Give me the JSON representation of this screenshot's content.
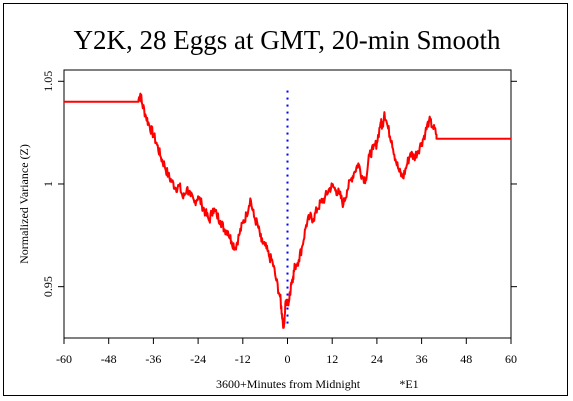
{
  "chart_data": {
    "type": "line",
    "title": "Y2K, 28 Eggs at GMT, 20-min Smooth",
    "xlabel": "3600+Minutes from Midnight",
    "xlabel_note": "*E1",
    "ylabel": "Normalized Variance (Z)",
    "xlim": [
      -60,
      60
    ],
    "ylim": [
      0.925,
      1.0555
    ],
    "x_ticks": [
      -60,
      -48,
      -36,
      -24,
      -12,
      0,
      12,
      24,
      36,
      48,
      60
    ],
    "y_ticks": [
      0.95,
      1,
      1.05
    ],
    "grid": false,
    "colors": {
      "series": "#ff0000",
      "marker": "#0000ff"
    },
    "series": [
      {
        "values": [
          [
            -60,
            1.04
          ],
          [
            -40,
            1.04
          ],
          [
            -40,
            1.041
          ],
          [
            -39.5,
            1.044
          ],
          [
            -39,
            1.039
          ],
          [
            -38,
            1.033
          ],
          [
            -37,
            1.028
          ],
          [
            -36,
            1.024
          ],
          [
            -35,
            1.019
          ],
          [
            -34,
            1.013
          ],
          [
            -33,
            1.009
          ],
          [
            -32,
            1.004
          ],
          [
            -31,
            1.001
          ],
          [
            -30,
            0.998
          ],
          [
            -29,
            0.999
          ],
          [
            -28,
            0.993
          ],
          [
            -27,
            0.998
          ],
          [
            -26,
            0.994
          ],
          [
            -25,
            0.991
          ],
          [
            -24,
            0.994
          ],
          [
            -23,
            0.99
          ],
          [
            -22,
            0.986
          ],
          [
            -21,
            0.982
          ],
          [
            -20,
            0.988
          ],
          [
            -19,
            0.985
          ],
          [
            -18,
            0.982
          ],
          [
            -17,
            0.978
          ],
          [
            -16,
            0.977
          ],
          [
            -15,
            0.972
          ],
          [
            -14,
            0.969
          ],
          [
            -13,
            0.975
          ],
          [
            -12,
            0.981
          ],
          [
            -11,
            0.985
          ],
          [
            -10,
            0.993
          ],
          [
            -9,
            0.984
          ],
          [
            -8,
            0.98
          ],
          [
            -7,
            0.972
          ],
          [
            -6,
            0.97
          ],
          [
            -5,
            0.965
          ],
          [
            -4,
            0.962
          ],
          [
            -3,
            0.953
          ],
          [
            -2,
            0.945
          ],
          [
            -1.5,
            0.937
          ],
          [
            -1,
            0.93
          ],
          [
            -0.5,
            0.943
          ],
          [
            0,
            0.941
          ],
          [
            0.5,
            0.944
          ],
          [
            1,
            0.952
          ],
          [
            1.5,
            0.955
          ],
          [
            2,
            0.96
          ],
          [
            3,
            0.963
          ],
          [
            4,
            0.97
          ],
          [
            5,
            0.98
          ],
          [
            6,
            0.984
          ],
          [
            7,
            0.983
          ],
          [
            8,
            0.988
          ],
          [
            9,
            0.991
          ],
          [
            10,
            0.993
          ],
          [
            11,
            0.997
          ],
          [
            12,
            0.999
          ],
          [
            13,
            0.997
          ],
          [
            14,
            0.995
          ],
          [
            15,
            0.99
          ],
          [
            16,
            0.997
          ],
          [
            17,
            1.002
          ],
          [
            18,
            1.006
          ],
          [
            19,
            1.01
          ],
          [
            20,
            1.004
          ],
          [
            21,
            1.002
          ],
          [
            22,
            1.014
          ],
          [
            23,
            1.017
          ],
          [
            24,
            1.02
          ],
          [
            25,
            1.03
          ],
          [
            25.5,
            1.028
          ],
          [
            26,
            1.035
          ],
          [
            27,
            1.027
          ],
          [
            28,
            1.021
          ],
          [
            29,
            1.012
          ],
          [
            30,
            1.006
          ],
          [
            31,
            1.003
          ],
          [
            32,
            1.009
          ],
          [
            33,
            1.015
          ],
          [
            34,
            1.013
          ],
          [
            35,
            1.016
          ],
          [
            36,
            1.02
          ],
          [
            37,
            1.025
          ],
          [
            38,
            1.031
          ],
          [
            39,
            1.028
          ],
          [
            40,
            1.024
          ],
          [
            40,
            1.022
          ],
          [
            60,
            1.022
          ]
        ]
      }
    ],
    "marker": {
      "type": "dotted-vertical",
      "x": 0,
      "y_range": [
        0.93,
        1.045
      ]
    }
  }
}
